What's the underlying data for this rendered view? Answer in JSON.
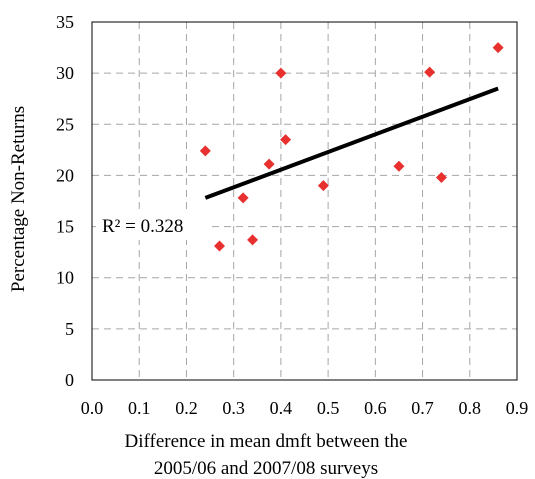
{
  "chart_data": {
    "type": "scatter",
    "xlabel_lines": [
      "Difference in mean dmft between the",
      "2005/06 and 2007/08 surveys"
    ],
    "ylabel": "Percentage Non-Returns",
    "xlim": [
      0,
      0.9
    ],
    "ylim": [
      0,
      35
    ],
    "x_ticks": [
      "0.0",
      "0.1",
      "0.2",
      "0.3",
      "0.4",
      "0.5",
      "0.6",
      "0.7",
      "0.8",
      "0.9"
    ],
    "y_ticks": [
      "0",
      "5",
      "10",
      "15",
      "20",
      "25",
      "30",
      "35"
    ],
    "grid": "dashed",
    "points": [
      {
        "x": 0.24,
        "y": 22.4
      },
      {
        "x": 0.27,
        "y": 13.1
      },
      {
        "x": 0.32,
        "y": 17.8
      },
      {
        "x": 0.34,
        "y": 13.7
      },
      {
        "x": 0.375,
        "y": 21.1
      },
      {
        "x": 0.4,
        "y": 30.0
      },
      {
        "x": 0.41,
        "y": 23.5
      },
      {
        "x": 0.49,
        "y": 19.0
      },
      {
        "x": 0.65,
        "y": 20.9
      },
      {
        "x": 0.715,
        "y": 30.1
      },
      {
        "x": 0.74,
        "y": 19.8
      },
      {
        "x": 0.86,
        "y": 32.5
      }
    ],
    "trendline": {
      "x": [
        0.24,
        0.86
      ],
      "y": [
        17.8,
        28.5
      ]
    },
    "annotation": "R² = 0.328",
    "colors": {
      "marker": "#e8312f",
      "trendline": "#000000",
      "grid": "#a6a6a6"
    }
  }
}
